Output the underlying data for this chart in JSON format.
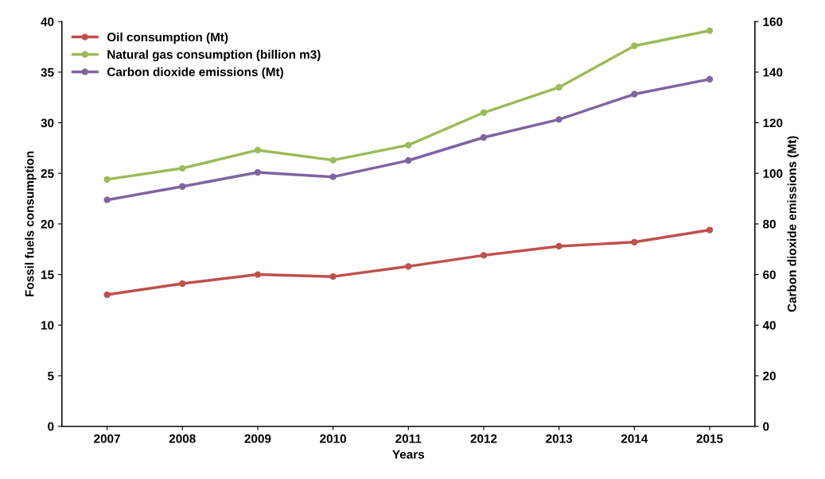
{
  "chart_data": {
    "type": "line",
    "xlabel": "Years",
    "ylabel": "Fossil fuels consumption",
    "y2label": "Carbon dioxide emissions (Mt)",
    "categories": [
      "2007",
      "2008",
      "2009",
      "2010",
      "2011",
      "2012",
      "2013",
      "2014",
      "2015"
    ],
    "series": [
      {
        "name": "Oil consumption (Mt)",
        "color": "#c0504d",
        "values": [
          13.0,
          14.1,
          15.0,
          14.8,
          15.8,
          16.9,
          17.8,
          18.2,
          19.4
        ]
      },
      {
        "name": "Natural gas consumption (billion m3)",
        "color": "#9bbb59",
        "values": [
          24.4,
          25.5,
          27.3,
          26.3,
          27.8,
          31.0,
          33.5,
          37.6,
          39.1
        ]
      },
      {
        "name": "Carbon dioxide emissions (Mt)",
        "color": "#8064a2",
        "axis": "y2",
        "values": [
          89.5,
          94.8,
          100.4,
          98.6,
          105.1,
          114.2,
          121.3,
          131.3,
          137.2
        ]
      }
    ],
    "ylim": [
      0,
      40
    ],
    "yticks": [
      0,
      5,
      10,
      15,
      20,
      25,
      30,
      35,
      40
    ],
    "y2lim": [
      0,
      160
    ],
    "y2ticks": [
      0,
      20,
      40,
      60,
      80,
      100,
      120,
      140,
      160
    ],
    "grid": false,
    "legend": "top left",
    "marker": "circle",
    "line_style": "solid"
  }
}
